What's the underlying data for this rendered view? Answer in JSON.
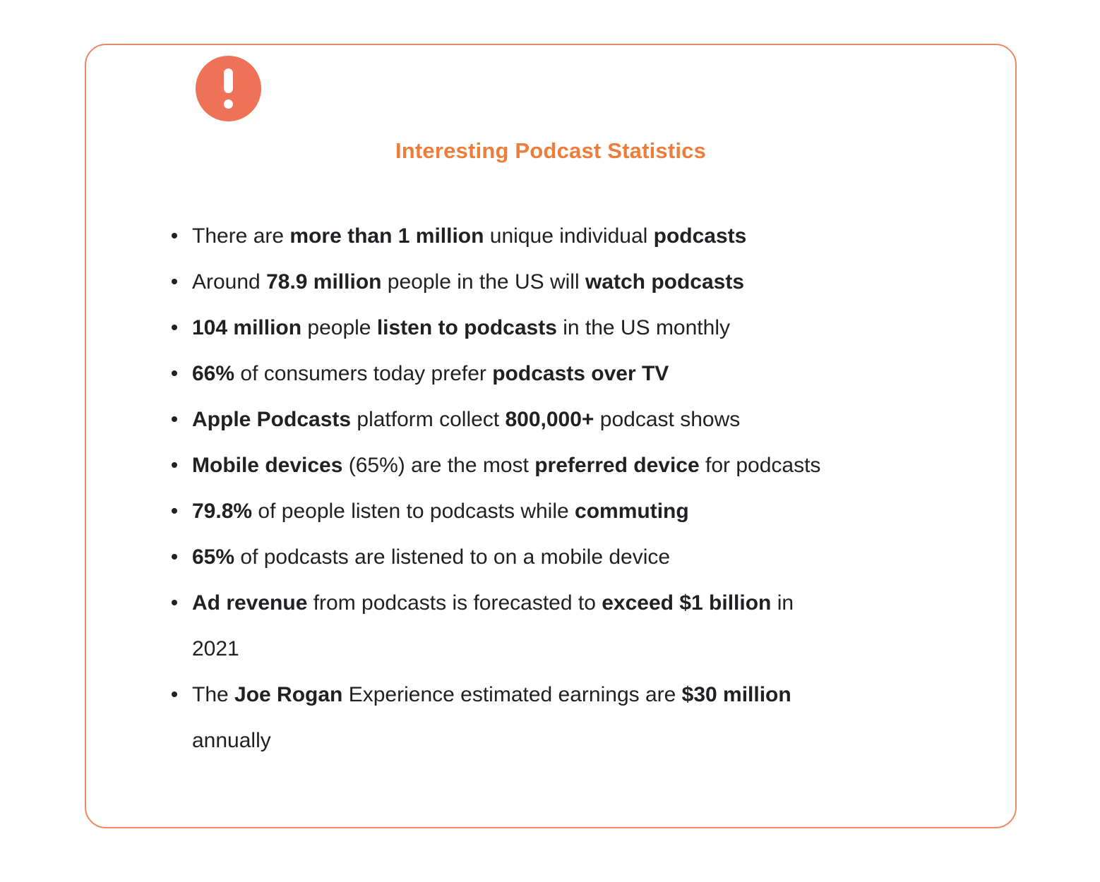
{
  "callout": {
    "icon": "exclamation-icon",
    "title": "Interesting Podcast Statistics",
    "colors": {
      "border": "#ED8A66",
      "icon_background": "#ED7257",
      "icon_glyph": "#FFFFFF",
      "title": "#ED7D3B",
      "text": "#202124"
    },
    "items": [
      {
        "segments": [
          {
            "t": "There are ",
            "b": false
          },
          {
            "t": "more than 1 million",
            "b": true
          },
          {
            "t": " unique individual ",
            "b": false
          },
          {
            "t": "podcasts",
            "b": true
          }
        ]
      },
      {
        "segments": [
          {
            "t": "Around ",
            "b": false
          },
          {
            "t": "78.9 million",
            "b": true
          },
          {
            "t": " people in the US will ",
            "b": false
          },
          {
            "t": "watch podcasts",
            "b": true
          }
        ]
      },
      {
        "segments": [
          {
            "t": "104 million",
            "b": true
          },
          {
            "t": " people ",
            "b": false
          },
          {
            "t": "listen to podcasts",
            "b": true
          },
          {
            "t": " in the US monthly",
            "b": false
          }
        ]
      },
      {
        "segments": [
          {
            "t": "66%",
            "b": true
          },
          {
            "t": " of consumers today prefer ",
            "b": false
          },
          {
            "t": "podcasts over TV",
            "b": true
          }
        ]
      },
      {
        "segments": [
          {
            "t": "Apple Podcasts",
            "b": true
          },
          {
            "t": " platform collect ",
            "b": false
          },
          {
            "t": "800,000+",
            "b": true
          },
          {
            "t": " podcast shows",
            "b": false
          }
        ]
      },
      {
        "segments": [
          {
            "t": "Mobile devices",
            "b": true
          },
          {
            "t": " (65%) are the most ",
            "b": false
          },
          {
            "t": "preferred device",
            "b": true
          },
          {
            "t": " for podcasts",
            "b": false
          }
        ]
      },
      {
        "segments": [
          {
            "t": "79.8%",
            "b": true
          },
          {
            "t": " of people listen to podcasts while ",
            "b": false
          },
          {
            "t": "commuting",
            "b": true
          }
        ]
      },
      {
        "segments": [
          {
            "t": "65%",
            "b": true
          },
          {
            "t": " of podcasts are listened to on a mobile device",
            "b": false
          }
        ]
      },
      {
        "segments": [
          {
            "t": "Ad revenue",
            "b": true
          },
          {
            "t": " from podcasts is forecasted to ",
            "b": false
          },
          {
            "t": "exceed $1 billion",
            "b": true
          },
          {
            "t": " in",
            "b": false
          },
          {
            "br": true
          },
          {
            "t": "2021",
            "b": false
          }
        ]
      },
      {
        "segments": [
          {
            "t": "The ",
            "b": false
          },
          {
            "t": "Joe Rogan",
            "b": true
          },
          {
            "t": " Experience estimated earnings are ",
            "b": false
          },
          {
            "t": "$30 million",
            "b": true
          },
          {
            "br": true
          },
          {
            "t": "annually",
            "b": false
          }
        ]
      }
    ]
  }
}
